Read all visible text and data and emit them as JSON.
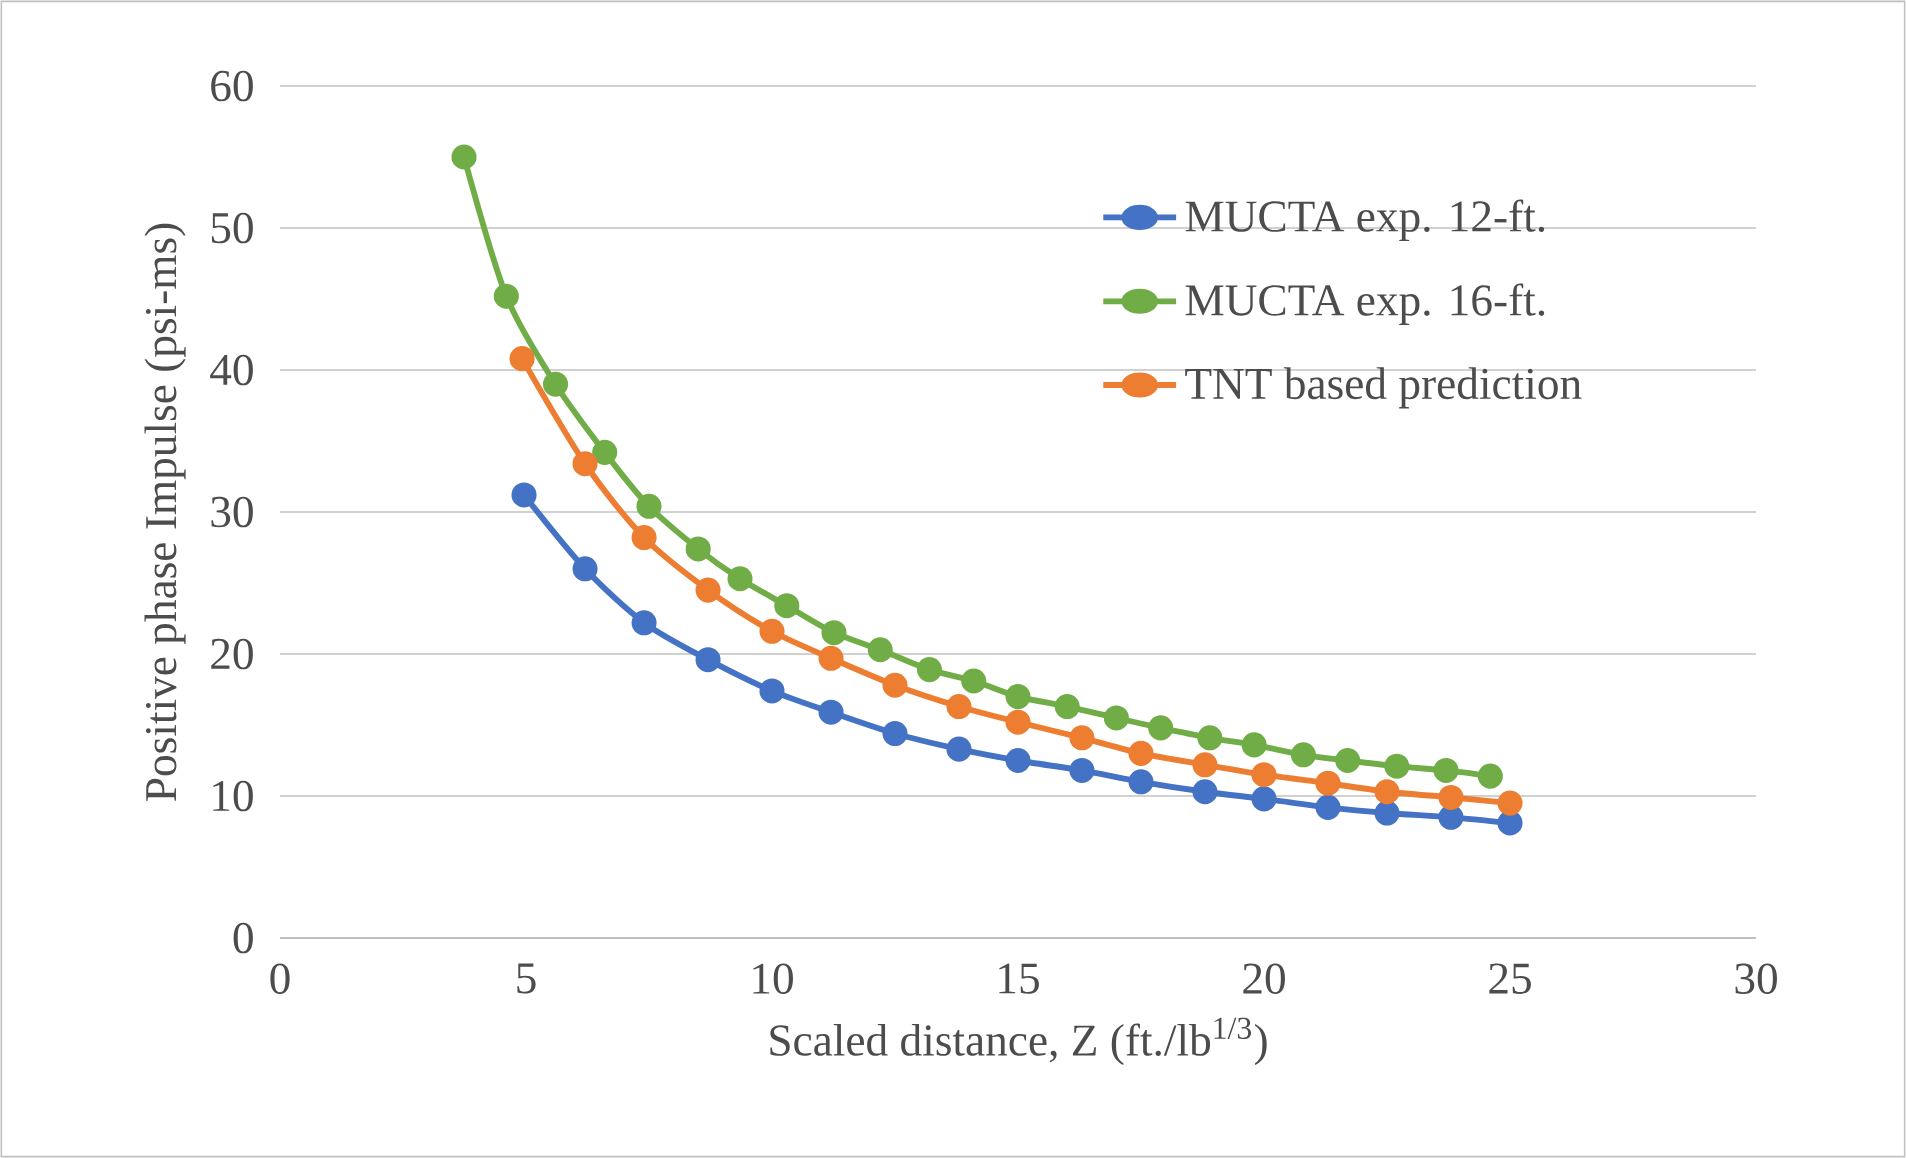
{
  "chart_data": {
    "type": "line",
    "xlabel": "Scaled distance, Z (ft./lb$^{1/3}$)",
    "ylabel": "Positive phase Impulse (psi-ms)",
    "xlim": [
      0,
      30
    ],
    "ylim": [
      0,
      60
    ],
    "xticks": [
      0,
      5,
      10,
      15,
      20,
      25,
      30
    ],
    "yticks": [
      0,
      10,
      20,
      30,
      40,
      50,
      60
    ],
    "grid": "y",
    "legend": "top right",
    "marker": "circle",
    "line_style": "solid",
    "series": [
      {
        "name": "MUCTA exp. 12-ft.",
        "color": "#4472c4",
        "x": [
          4.96,
          6.2,
          7.4,
          8.7,
          10.0,
          11.2,
          12.5,
          13.8,
          15.0,
          16.3,
          17.5,
          18.8,
          20.0,
          21.3,
          22.5,
          23.8,
          25.0
        ],
        "values": [
          31.2,
          26,
          22.2,
          19.6,
          17.4,
          15.9,
          14.4,
          13.3,
          12.5,
          11.8,
          11.0,
          10.3,
          9.8,
          9.2,
          8.8,
          8.5,
          8.1
        ]
      },
      {
        "name": "MUCTA exp. 16-ft.",
        "color": "#70ad47",
        "x": [
          3.74,
          4.6,
          5.6,
          6.6,
          7.5,
          8.5,
          9.35,
          10.3,
          11.26,
          12.2,
          13.2,
          14.1,
          15.0,
          16.0,
          17.0,
          17.9,
          18.9,
          19.8,
          20.8,
          21.7,
          22.7,
          23.7,
          24.6
        ],
        "values": [
          55,
          45.2,
          39,
          34.2,
          30.4,
          27.4,
          25.3,
          23.4,
          21.5,
          20.3,
          18.9,
          18.1,
          17.0,
          16.3,
          15.5,
          14.8,
          14.1,
          13.6,
          12.9,
          12.5,
          12.1,
          11.8,
          11.4
        ]
      },
      {
        "name": "TNT based prediction",
        "color": "#ed7d31",
        "x": [
          4.92,
          6.2,
          7.4,
          8.7,
          10.0,
          11.2,
          12.5,
          13.8,
          15.0,
          16.3,
          17.5,
          18.8,
          20.0,
          21.3,
          22.5,
          23.8,
          25.0
        ],
        "values": [
          40.8,
          33.4,
          28.2,
          24.5,
          21.6,
          19.7,
          17.8,
          16.3,
          15.2,
          14.1,
          13.0,
          12.2,
          11.5,
          10.9,
          10.3,
          9.9,
          9.5
        ]
      }
    ]
  }
}
